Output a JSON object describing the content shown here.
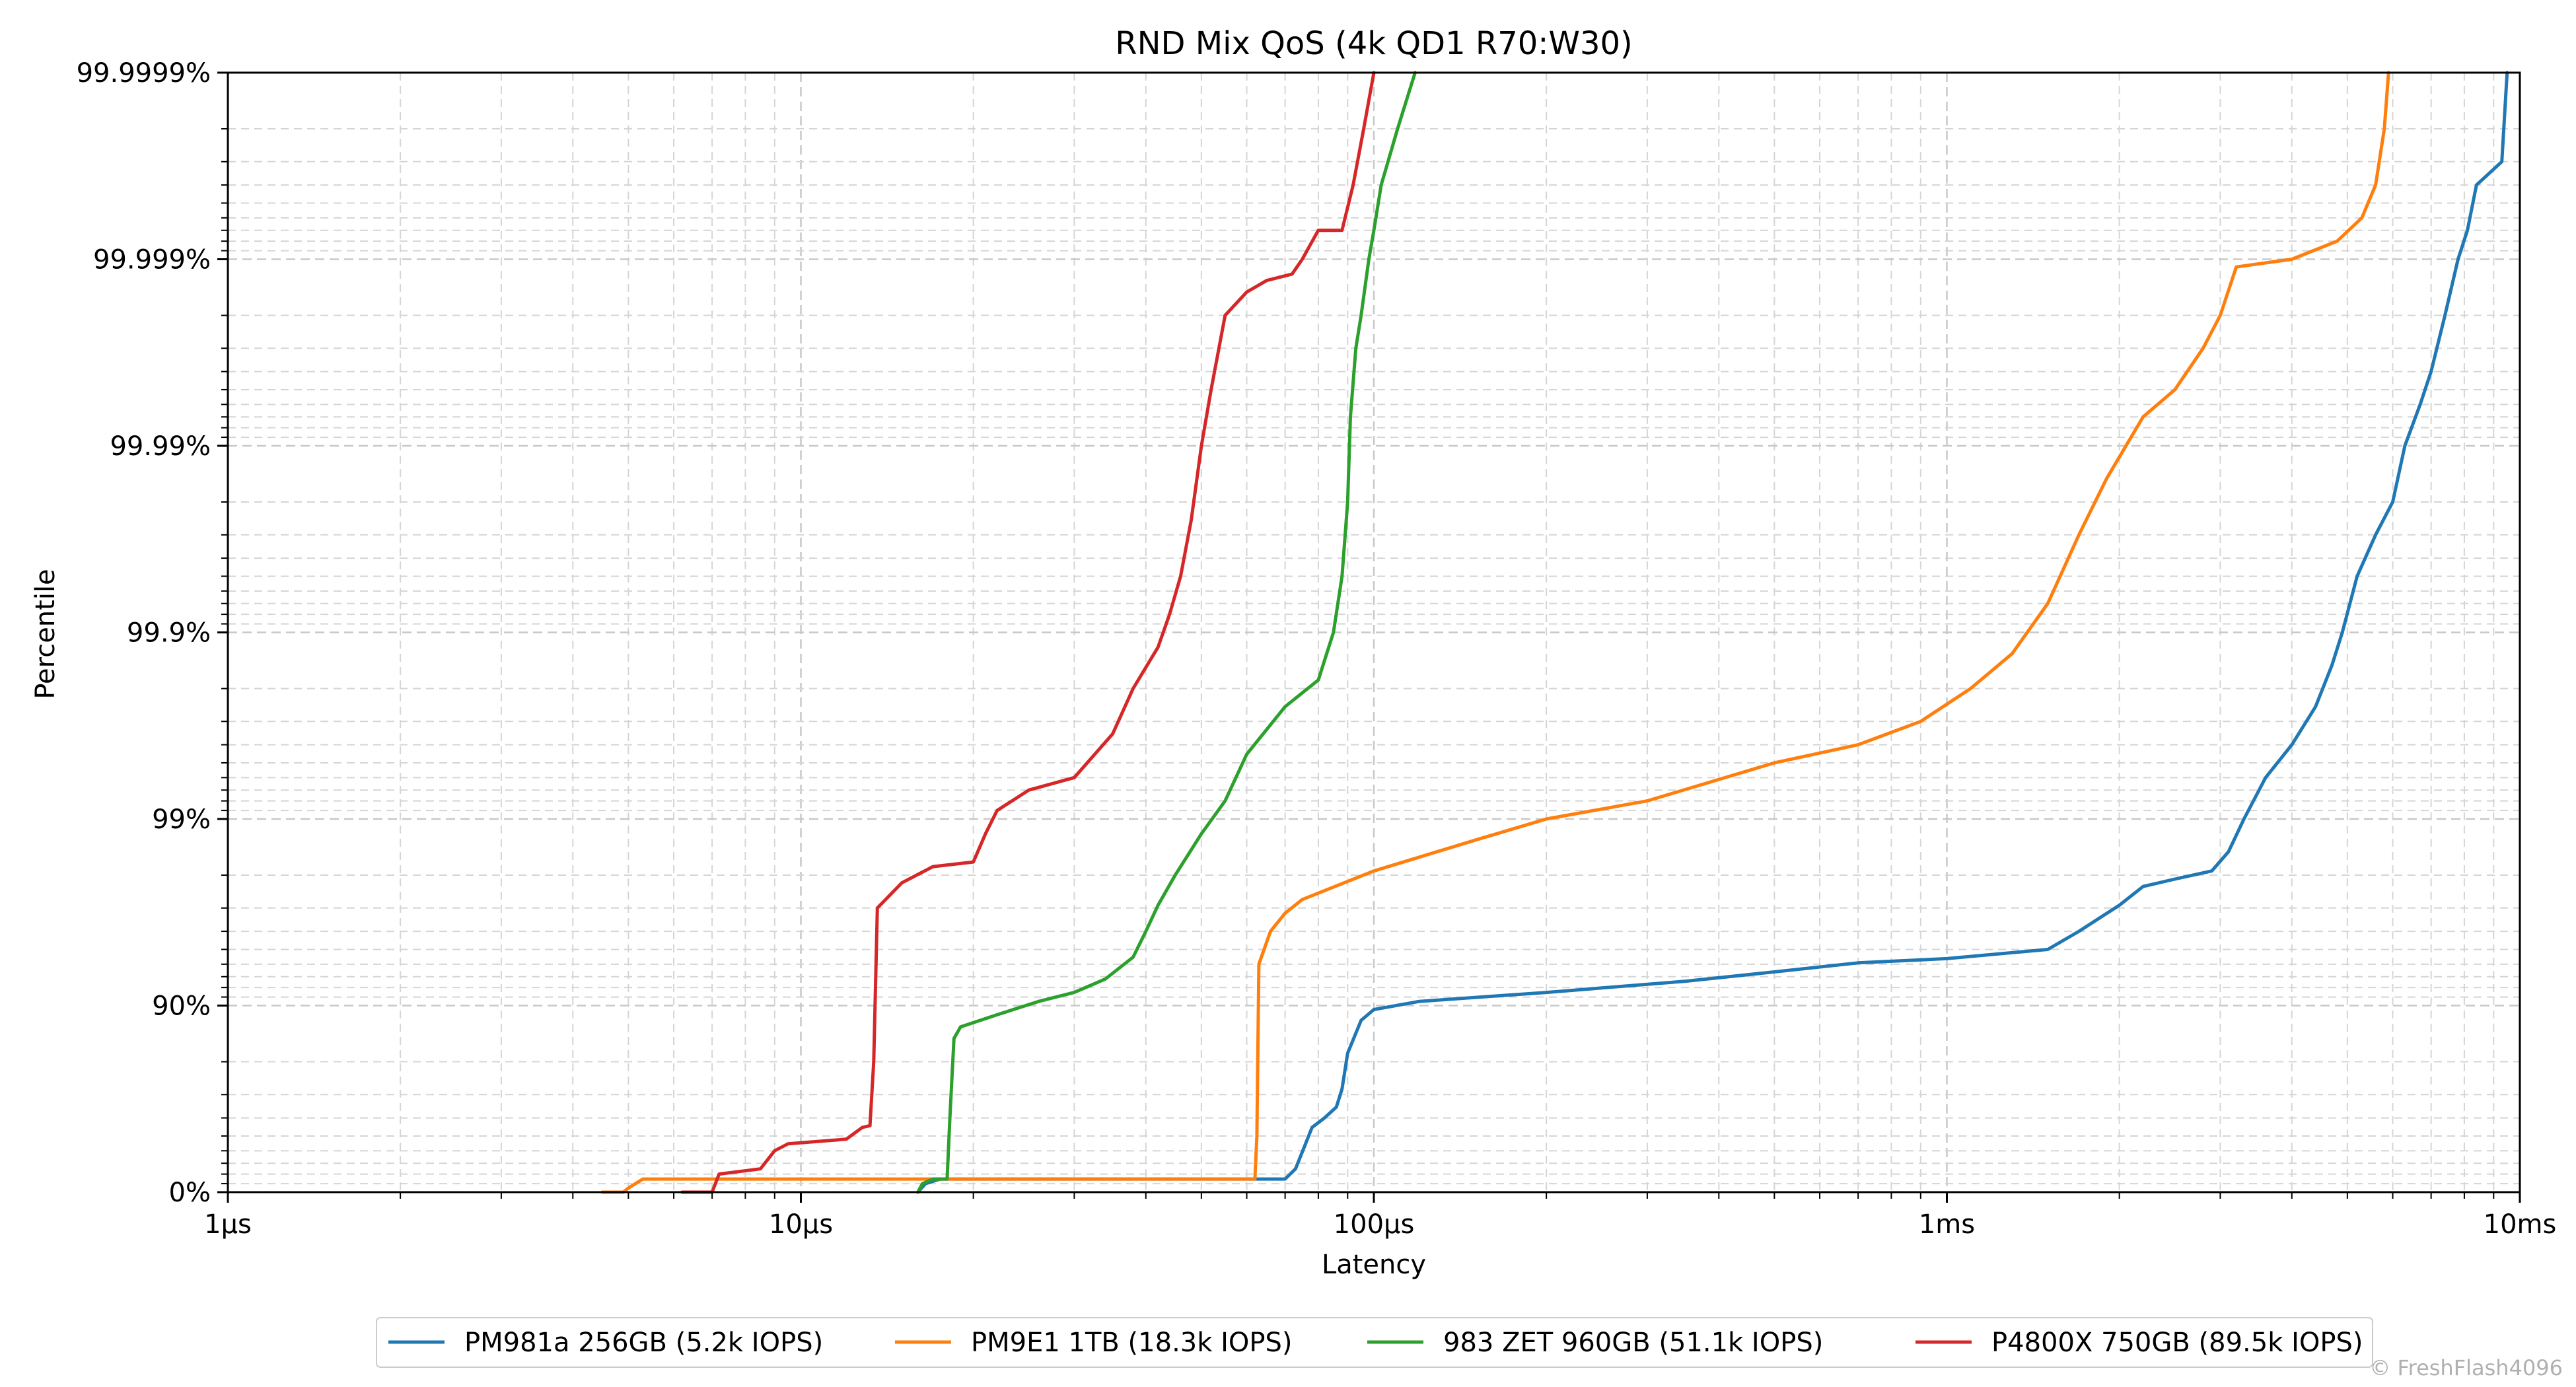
{
  "chart_data": {
    "type": "line",
    "title": "RND Mix QoS (4k QD1 R70:W30)",
    "xlabel": "Latency",
    "ylabel": "Percentile",
    "x_scale": "log",
    "x_unit": "µs",
    "xlim": [
      1,
      10000
    ],
    "x_ticks": [
      {
        "value": 1,
        "label": "1µs"
      },
      {
        "value": 10,
        "label": "10µs"
      },
      {
        "value": 100,
        "label": "100µs"
      },
      {
        "value": 1000,
        "label": "1ms"
      },
      {
        "value": 10000,
        "label": "10ms"
      }
    ],
    "y_scale": "nines",
    "y_ticks": [
      {
        "value": 0,
        "label": "0%"
      },
      {
        "value": 90,
        "label": "90%"
      },
      {
        "value": 99,
        "label": "99%"
      },
      {
        "value": 99.9,
        "label": "99.9%"
      },
      {
        "value": 99.99,
        "label": "99.99%"
      },
      {
        "value": 99.999,
        "label": "99.999%"
      },
      {
        "value": 99.9999,
        "label": "99.9999%"
      }
    ],
    "grid": true,
    "legend_position": "bottom-center",
    "series": [
      {
        "name": "PM981a 256GB (5.2k IOPS)",
        "color": "#1f77b4",
        "points": [
          [
            16,
            0
          ],
          [
            16.5,
            10
          ],
          [
            17.5,
            15
          ],
          [
            65,
            15
          ],
          [
            70,
            15
          ],
          [
            73,
            25
          ],
          [
            76,
            45
          ],
          [
            78,
            55
          ],
          [
            82,
            60
          ],
          [
            86,
            65
          ],
          [
            88,
            72
          ],
          [
            90,
            82
          ],
          [
            95,
            88
          ],
          [
            100,
            89.5
          ],
          [
            120,
            90.5
          ],
          [
            200,
            91.5
          ],
          [
            350,
            92.6
          ],
          [
            500,
            93.4
          ],
          [
            700,
            94.1
          ],
          [
            1000,
            94.4
          ],
          [
            1500,
            95
          ],
          [
            1700,
            96
          ],
          [
            2000,
            97.1
          ],
          [
            2200,
            97.7
          ],
          [
            2500,
            97.9
          ],
          [
            2900,
            98.1
          ],
          [
            3100,
            98.5
          ],
          [
            3300,
            99.0
          ],
          [
            3600,
            99.4
          ],
          [
            4000,
            99.6
          ],
          [
            4400,
            99.75
          ],
          [
            4700,
            99.85
          ],
          [
            4900,
            99.9
          ],
          [
            5200,
            99.95
          ],
          [
            5600,
            99.97
          ],
          [
            6000,
            99.98
          ],
          [
            6300,
            99.99
          ],
          [
            6700,
            99.994
          ],
          [
            7000,
            99.996
          ],
          [
            7400,
            99.998
          ],
          [
            7800,
            99.999
          ],
          [
            8100,
            99.9993
          ],
          [
            8400,
            99.9996
          ],
          [
            9300,
            99.9997
          ],
          [
            9500,
            99.9999
          ]
        ]
      },
      {
        "name": "PM9E1 1TB (18.3k IOPS)",
        "color": "#ff7f0e",
        "points": [
          [
            4.5,
            0
          ],
          [
            4.9,
            0
          ],
          [
            5.0,
            5
          ],
          [
            5.3,
            15
          ],
          [
            62,
            15
          ],
          [
            62.5,
            50
          ],
          [
            63,
            94
          ],
          [
            66,
            96
          ],
          [
            70,
            96.8
          ],
          [
            75,
            97.3
          ],
          [
            100,
            98.1
          ],
          [
            150,
            98.7
          ],
          [
            200,
            99.0
          ],
          [
            300,
            99.2
          ],
          [
            500,
            99.5
          ],
          [
            700,
            99.6
          ],
          [
            900,
            99.7
          ],
          [
            1100,
            99.8
          ],
          [
            1300,
            99.87
          ],
          [
            1500,
            99.93
          ],
          [
            1700,
            99.97
          ],
          [
            1900,
            99.985
          ],
          [
            2200,
            99.993
          ],
          [
            2500,
            99.995
          ],
          [
            2800,
            99.997
          ],
          [
            3000,
            99.998
          ],
          [
            3200,
            99.9989
          ],
          [
            4000,
            99.999
          ],
          [
            4800,
            99.9992
          ],
          [
            5300,
            99.9994
          ],
          [
            5600,
            99.9996
          ],
          [
            5800,
            99.9998
          ],
          [
            5900,
            99.9999
          ]
        ]
      },
      {
        "name": "983 ZET 960GB (51.1k IOPS)",
        "color": "#2ca02c",
        "points": [
          [
            16,
            0
          ],
          [
            16.3,
            10
          ],
          [
            17,
            15
          ],
          [
            18,
            15
          ],
          [
            18.2,
            60
          ],
          [
            18.5,
            85
          ],
          [
            19,
            87
          ],
          [
            22,
            88.8
          ],
          [
            26,
            90.5
          ],
          [
            30,
            91.5
          ],
          [
            34,
            92.8
          ],
          [
            38,
            94.5
          ],
          [
            40,
            96
          ],
          [
            42,
            97.1
          ],
          [
            45,
            98.0
          ],
          [
            50,
            98.8
          ],
          [
            55,
            99.2
          ],
          [
            60,
            99.55
          ],
          [
            70,
            99.75
          ],
          [
            80,
            99.82
          ],
          [
            85,
            99.9
          ],
          [
            88,
            99.95
          ],
          [
            90,
            99.98
          ],
          [
            91,
            99.993
          ],
          [
            93,
            99.997
          ],
          [
            95,
            99.998
          ],
          [
            98,
            99.999
          ],
          [
            100,
            99.9993
          ],
          [
            103,
            99.9996
          ],
          [
            110,
            99.9998
          ],
          [
            118,
            99.9999
          ]
        ]
      },
      {
        "name": "P4800X 750GB (89.5k IOPS)",
        "color": "#d62728",
        "points": [
          [
            6.2,
            0
          ],
          [
            7.0,
            0
          ],
          [
            7.2,
            20
          ],
          [
            8.5,
            25
          ],
          [
            9,
            40
          ],
          [
            9.5,
            45
          ],
          [
            12,
            48
          ],
          [
            12.8,
            55
          ],
          [
            13.2,
            56
          ],
          [
            13.4,
            80
          ],
          [
            13.6,
            97
          ],
          [
            15,
            97.8
          ],
          [
            17,
            98.2
          ],
          [
            20,
            98.3
          ],
          [
            21,
            98.8
          ],
          [
            22,
            99.1
          ],
          [
            25,
            99.3
          ],
          [
            30,
            99.4
          ],
          [
            35,
            99.65
          ],
          [
            38,
            99.8
          ],
          [
            42,
            99.88
          ],
          [
            44,
            99.92
          ],
          [
            46,
            99.95
          ],
          [
            48,
            99.975
          ],
          [
            50,
            99.99
          ],
          [
            52,
            99.995
          ],
          [
            55,
            99.998
          ],
          [
            60,
            99.9985
          ],
          [
            65,
            99.9987
          ],
          [
            72,
            99.9988
          ],
          [
            75,
            99.999
          ],
          [
            80,
            99.9993
          ],
          [
            88,
            99.9993
          ],
          [
            92,
            99.9996
          ],
          [
            96,
            99.9998
          ],
          [
            100,
            99.9999
          ]
        ]
      }
    ]
  },
  "credit": "© FreshFlash4096"
}
